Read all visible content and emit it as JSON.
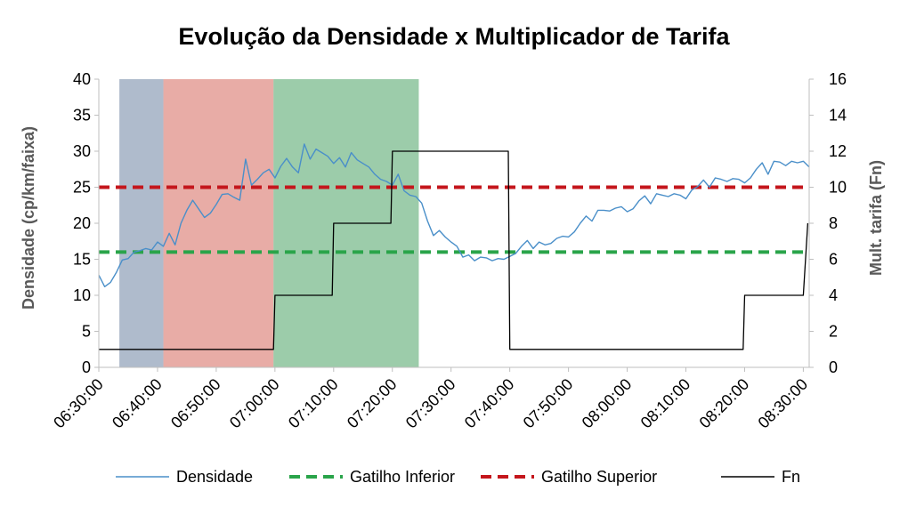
{
  "chart_data": {
    "type": "line",
    "title": "Evolução da Densidade x Multiplicador de Tarifa",
    "ylabel": "Densidade (cp/km/faixa)",
    "y2label": "Mult. tarifa (Fn)",
    "ylim": [
      0,
      40
    ],
    "y2lim": [
      0,
      16
    ],
    "yticks": [
      "0",
      "5",
      "10",
      "15",
      "20",
      "25",
      "30",
      "35",
      "40"
    ],
    "y2ticks": [
      "0",
      "2",
      "4",
      "6",
      "8",
      "10",
      "12",
      "14",
      "16"
    ],
    "xlim": [
      "06:30:00",
      "08:31:00"
    ],
    "xticks": [
      "06:30:00",
      "06:40:00",
      "06:50:00",
      "07:00:00",
      "07:10:00",
      "07:20:00",
      "07:30:00",
      "07:40:00",
      "07:50:00",
      "08:00:00",
      "08:10:00",
      "08:20:00",
      "08:30:00"
    ],
    "grid": false,
    "legend_position": "bottom",
    "shaded_regions": [
      {
        "start": "06:33:30",
        "end": "06:41:00",
        "color": "#8497b0",
        "opacity": 0.65
      },
      {
        "start": "06:41:00",
        "end": "06:59:45",
        "color": "#d9756b",
        "opacity": 0.6
      },
      {
        "start": "06:59:45",
        "end": "07:24:30",
        "color": "#5aaa72",
        "opacity": 0.6
      }
    ],
    "series": [
      {
        "name": "Densidade",
        "axis": "left",
        "style": "line",
        "color": "#4a8fc9",
        "x": [
          "06:30:00",
          "06:31:00",
          "06:32:00",
          "06:33:00",
          "06:34:00",
          "06:35:00",
          "06:36:00",
          "06:37:00",
          "06:38:00",
          "06:39:00",
          "06:40:00",
          "06:41:00",
          "06:42:00",
          "06:43:00",
          "06:44:00",
          "06:45:00",
          "06:46:00",
          "06:47:00",
          "06:48:00",
          "06:49:00",
          "06:50:00",
          "06:51:00",
          "06:52:00",
          "06:53:00",
          "06:54:00",
          "06:55:00",
          "06:56:00",
          "06:57:00",
          "06:58:00",
          "06:59:00",
          "07:00:00",
          "07:01:00",
          "07:02:00",
          "07:03:00",
          "07:04:00",
          "07:05:00",
          "07:06:00",
          "07:07:00",
          "07:08:00",
          "07:09:00",
          "07:10:00",
          "07:11:00",
          "07:12:00",
          "07:13:00",
          "07:14:00",
          "07:15:00",
          "07:16:00",
          "07:17:00",
          "07:18:00",
          "07:19:00",
          "07:20:00",
          "07:21:00",
          "07:22:00",
          "07:23:00",
          "07:24:00",
          "07:25:00",
          "07:26:00",
          "07:27:00",
          "07:28:00",
          "07:29:00",
          "07:30:00",
          "07:31:00",
          "07:32:00",
          "07:33:00",
          "07:34:00",
          "07:35:00",
          "07:36:00",
          "07:37:00",
          "07:38:00",
          "07:39:00",
          "07:40:00",
          "07:41:00",
          "07:42:00",
          "07:43:00",
          "07:44:00",
          "07:45:00",
          "07:46:00",
          "07:47:00",
          "07:48:00",
          "07:49:00",
          "07:50:00",
          "07:51:00",
          "07:52:00",
          "07:53:00",
          "07:54:00",
          "07:55:00",
          "07:56:00",
          "07:57:00",
          "07:58:00",
          "07:59:00",
          "08:00:00",
          "08:01:00",
          "08:02:00",
          "08:03:00",
          "08:04:00",
          "08:05:00",
          "08:06:00",
          "08:07:00",
          "08:08:00",
          "08:09:00",
          "08:10:00",
          "08:11:00",
          "08:12:00",
          "08:13:00",
          "08:14:00",
          "08:15:00",
          "08:16:00",
          "08:17:00",
          "08:18:00",
          "08:19:00",
          "08:20:00",
          "08:21:00",
          "08:22:00",
          "08:23:00",
          "08:24:00",
          "08:25:00",
          "08:26:00",
          "08:27:00",
          "08:28:00",
          "08:29:00",
          "08:30:00",
          "08:31:00"
        ],
        "values": [
          12.8,
          11.2,
          11.8,
          13.2,
          14.9,
          15.1,
          16.0,
          16.2,
          16.5,
          16.3,
          17.4,
          16.8,
          18.6,
          17.0,
          20.0,
          21.8,
          23.2,
          22.0,
          20.8,
          21.4,
          22.6,
          24.0,
          24.1,
          23.6,
          23.2,
          28.9,
          25.3,
          26.1,
          27.0,
          27.5,
          26.3,
          27.9,
          29.0,
          27.8,
          27.0,
          31.0,
          28.9,
          30.3,
          29.8,
          29.3,
          28.3,
          29.1,
          27.8,
          29.8,
          28.8,
          28.3,
          27.8,
          26.8,
          26.1,
          25.8,
          25.3,
          26.8,
          24.5,
          23.9,
          23.7,
          22.8,
          20.3,
          18.3,
          19.0,
          18.1,
          17.4,
          16.8,
          15.3,
          15.6,
          14.8,
          15.3,
          15.2,
          14.8,
          15.1,
          15.0,
          15.4,
          15.8,
          16.8,
          17.6,
          16.5,
          17.4,
          17.0,
          17.2,
          17.9,
          18.2,
          18.1,
          18.8,
          20.0,
          21.0,
          20.3,
          21.8,
          21.8,
          21.7,
          22.1,
          22.3,
          21.6,
          22.0,
          23.1,
          23.8,
          22.7,
          24.1,
          23.9,
          23.7,
          24.1,
          23.9,
          23.4,
          24.6,
          25.1,
          26.0,
          25.0,
          26.3,
          26.1,
          25.8,
          26.2,
          26.1,
          25.6,
          26.3,
          27.5,
          28.4,
          26.8,
          28.6,
          28.5,
          28.0,
          28.6,
          28.4,
          28.6,
          27.8
        ]
      },
      {
        "name": "Gatilho Inferior",
        "axis": "left",
        "style": "dashed",
        "color": "#2aa44a",
        "x": [
          "06:30:00",
          "08:30:00"
        ],
        "values": [
          16,
          16
        ]
      },
      {
        "name": "Gatilho Superior",
        "axis": "left",
        "style": "dashed",
        "color": "#c4161c",
        "x": [
          "06:30:00",
          "08:30:00"
        ],
        "values": [
          25,
          25
        ]
      },
      {
        "name": "Fn",
        "axis": "right",
        "style": "step",
        "color": "#000000",
        "x": [
          "06:30:00",
          "06:59:45",
          "07:00:00",
          "07:09:45",
          "07:10:00",
          "07:19:45",
          "07:20:00",
          "07:39:45",
          "07:40:00",
          "08:19:45",
          "08:20:00",
          "08:29:45",
          "08:30:00",
          "08:30:45"
        ],
        "values": [
          1,
          1,
          4,
          4,
          8,
          8,
          12,
          12,
          1,
          1,
          4,
          4,
          4,
          8
        ]
      }
    ]
  }
}
